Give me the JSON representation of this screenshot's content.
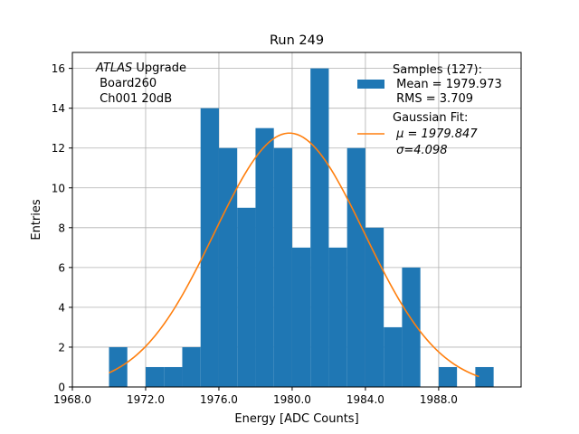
{
  "chart_data": {
    "type": "bar",
    "title": "Run 249",
    "xlabel": "Energy [ADC Counts]",
    "ylabel": "Entries",
    "xlim": [
      1968.0,
      1992.5
    ],
    "ylim": [
      0,
      16.8
    ],
    "grid": true,
    "xticks": [
      1968.0,
      1972.0,
      1976.0,
      1980.0,
      1984.0,
      1988.0
    ],
    "xtick_labels": [
      "1968.0",
      "1972.0",
      "1976.0",
      "1980.0",
      "1984.0",
      "1988.0"
    ],
    "yticks": [
      0,
      2,
      4,
      6,
      8,
      10,
      12,
      14,
      16
    ],
    "ytick_labels": [
      "0",
      "2",
      "4",
      "6",
      "8",
      "10",
      "12",
      "14",
      "16"
    ],
    "bin_width": 1.0,
    "bin_edges_start": [
      1970,
      1971,
      1972,
      1973,
      1974,
      1975,
      1976,
      1977,
      1978,
      1979,
      1980,
      1981,
      1982,
      1983,
      1984,
      1985,
      1986,
      1987,
      1988,
      1989,
      1990
    ],
    "values": [
      2,
      0,
      1,
      1,
      2,
      14,
      12,
      9,
      13,
      12,
      7,
      16,
      7,
      12,
      8,
      3,
      6,
      0,
      1,
      0,
      1
    ],
    "fit": {
      "mu": 1979.847,
      "sigma": 4.098,
      "amplitude": 12.75,
      "x_range": [
        1970.0,
        1990.2
      ]
    },
    "colors": {
      "bars": "#1f77b4",
      "fit": "#ff7f0e",
      "grid": "#b0b0b0"
    },
    "annotation": {
      "line1_italic": "ATLAS",
      "line1_rest": " Upgrade",
      "line2": " Board260",
      "line3": " Ch001 20dB"
    },
    "legend": {
      "placement": "top-right",
      "hist_label_line1": "Samples (127):",
      "hist_label_line2": " Mean = 1979.973",
      "hist_label_line3": " RMS = 3.709",
      "fit_label_line1": "Gaussian Fit:",
      "fit_label_line2": " μ = 1979.847",
      "fit_label_line3": " σ=4.098"
    }
  }
}
